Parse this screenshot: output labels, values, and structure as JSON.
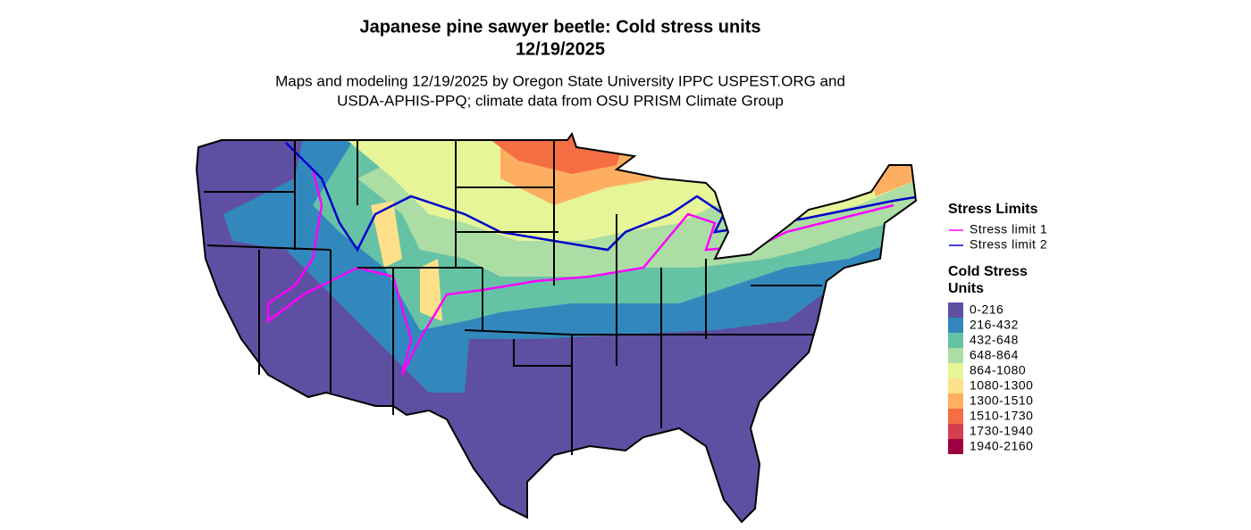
{
  "title": [
    "Japanese pine sawyer beetle: Cold stress units",
    "12/19/2025"
  ],
  "subtitle": [
    "Maps and modeling 12/19/2025 by Oregon State University IPPC USPEST.ORG and",
    "USDA-APHIS-PPQ; climate data from OSU PRISM Climate Group"
  ],
  "legend_limits": {
    "title": "Stress Limits",
    "items": [
      {
        "label": "Stress limit 1",
        "color": "#ff00ff"
      },
      {
        "label": "Stress limit 2",
        "color": "#0000cc"
      }
    ]
  },
  "legend_units": {
    "title": [
      "Cold Stress",
      "Units"
    ],
    "items": [
      {
        "label": "0-216",
        "color": "#5e4fa2"
      },
      {
        "label": "216-432",
        "color": "#3288bd"
      },
      {
        "label": "432-648",
        "color": "#66c2a5"
      },
      {
        "label": "648-864",
        "color": "#abdda4"
      },
      {
        "label": "864-1080",
        "color": "#e6f598"
      },
      {
        "label": "1080-1300",
        "color": "#fee08b"
      },
      {
        "label": "1300-1510",
        "color": "#fdae61"
      },
      {
        "label": "1510-1730",
        "color": "#f46d43"
      },
      {
        "label": "1730-1940",
        "color": "#d53e4f"
      },
      {
        "label": "1940-2160",
        "color": "#9e0142"
      }
    ]
  }
}
